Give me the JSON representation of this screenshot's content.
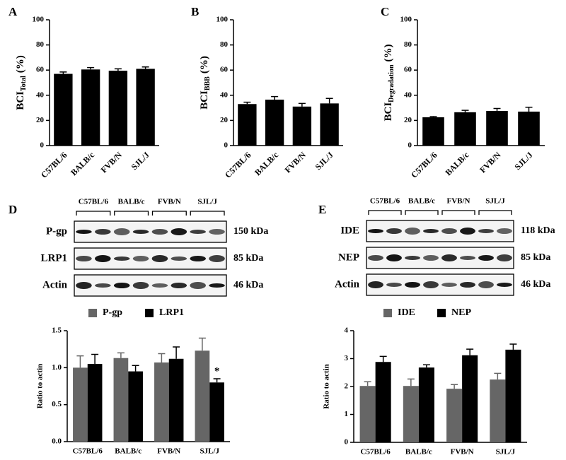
{
  "chart_data": [
    {
      "type": "bar",
      "panel": "A",
      "ylabel": {
        "main": "BCI",
        "sub": "Total",
        "unit": "(%)"
      },
      "categories": [
        "C57BL/6",
        "BALB/c",
        "FVB/N",
        "SJL/J"
      ],
      "values": [
        57,
        60.5,
        59.5,
        61
      ],
      "errors": [
        1.5,
        1.5,
        1.5,
        1.5
      ],
      "color": "#000000",
      "ylim": [
        0,
        100
      ],
      "yticks": [
        0,
        20,
        40,
        60,
        80,
        100
      ]
    },
    {
      "type": "bar",
      "panel": "B",
      "ylabel": {
        "main": "BCI",
        "sub": "BBB",
        "unit": "(%)"
      },
      "categories": [
        "C57BL/6",
        "BALB/c",
        "FVB/N",
        "SJL/J"
      ],
      "values": [
        33,
        36.5,
        31,
        33.5
      ],
      "errors": [
        1.5,
        2.5,
        2.5,
        4
      ],
      "color": "#000000",
      "ylim": [
        0,
        100
      ],
      "yticks": [
        0,
        20,
        40,
        60,
        80,
        100
      ]
    },
    {
      "type": "bar",
      "panel": "C",
      "ylabel": {
        "main": "BCI",
        "sub": "Degradation",
        "unit": "(%)"
      },
      "categories": [
        "C57BL/6",
        "BALB/c",
        "FVB/N",
        "SJL/J"
      ],
      "values": [
        22.5,
        26.5,
        27.5,
        27
      ],
      "errors": [
        0.5,
        1.5,
        2,
        3.5
      ],
      "color": "#000000",
      "ylim": [
        0,
        100
      ],
      "yticks": [
        0,
        20,
        40,
        60,
        80,
        100
      ]
    },
    {
      "type": "grouped-bar",
      "panel": "D",
      "blot": {
        "rows": [
          "P-gp",
          "LRP1",
          "Actin"
        ],
        "sizes": [
          "150 kDa",
          "85 kDa",
          "46 kDa"
        ]
      },
      "ylabel": "Ratio to actin",
      "categories": [
        "C57BL/6",
        "BALB/c",
        "FVB/N",
        "SJL/J"
      ],
      "series": [
        {
          "name": "P-gp",
          "color": "#666666",
          "values": [
            1.0,
            1.13,
            1.07,
            1.23
          ],
          "errors": [
            0.16,
            0.07,
            0.12,
            0.17
          ]
        },
        {
          "name": "LRP1",
          "color": "#000000",
          "values": [
            1.05,
            0.95,
            1.12,
            0.8
          ],
          "errors": [
            0.13,
            0.08,
            0.16,
            0.05
          ]
        }
      ],
      "ylim": [
        0,
        1.5
      ],
      "yticks": [
        {
          "value": 0,
          "label": "0.0"
        },
        0.5,
        {
          "value": 1,
          "label": "1.0"
        },
        1.5
      ],
      "annotation": {
        "text": "*",
        "series": "LRP1",
        "category": "SJL/J"
      }
    },
    {
      "type": "grouped-bar",
      "panel": "E",
      "blot": {
        "rows": [
          "IDE",
          "NEP",
          "Actin"
        ],
        "sizes": [
          "118 kDa",
          "85 kDa",
          "46 kDa"
        ]
      },
      "ylabel": "Ratio to actin",
      "categories": [
        "C57BL/6",
        "BALB/c",
        "FVB/N",
        "SJL/J"
      ],
      "series": [
        {
          "name": "IDE",
          "color": "#666666",
          "values": [
            2.02,
            2.02,
            1.92,
            2.25
          ],
          "errors": [
            0.15,
            0.25,
            0.15,
            0.22
          ]
        },
        {
          "name": "NEP",
          "color": "#000000",
          "values": [
            2.88,
            2.68,
            3.12,
            3.32
          ],
          "errors": [
            0.2,
            0.1,
            0.22,
            0.2
          ]
        }
      ],
      "ylim": [
        0,
        4
      ],
      "yticks": [
        0,
        1,
        2,
        3,
        4
      ]
    }
  ]
}
